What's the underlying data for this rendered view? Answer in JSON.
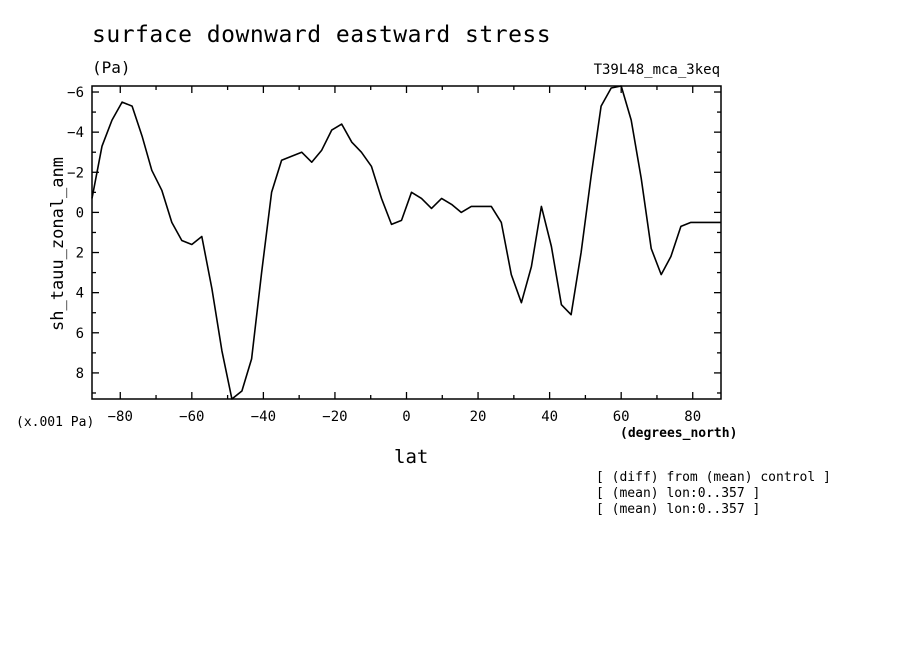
{
  "header": {
    "title": "surface downward eastward stress",
    "units": "(Pa)",
    "run_id": "T39L48_mca_3keq"
  },
  "axes": {
    "y_scale_note": "(x.001 Pa)",
    "x_units": "(degrees_north)"
  },
  "notes": [
    "[ (diff) from (mean) control ]",
    "[ (mean) lon:0..357 ]",
    "[ (mean) lon:0..357 ]"
  ],
  "chart_data": {
    "type": "line",
    "xlabel": "lat",
    "ylabel": "sh_tauu_zonal_anm",
    "xlim": [
      -87.9,
      87.9
    ],
    "ylim": [
      9.3,
      -6.3
    ],
    "y_inverted": true,
    "x_ticks": [
      -80,
      -60,
      -40,
      -20,
      0,
      20,
      40,
      60,
      80
    ],
    "y_ticks": [
      -6,
      -4,
      -2,
      0,
      2,
      4,
      6,
      8
    ],
    "x_tick_labels": [
      "−80",
      "−60",
      "−40",
      "−20",
      "0",
      "20",
      "40",
      "60",
      "80"
    ],
    "y_tick_labels": [
      "−6",
      "−4",
      "−2",
      "0",
      "2",
      "4",
      "6",
      "8"
    ],
    "grid": false,
    "series": [
      {
        "x": [
          -87.9,
          -85.1,
          -82.3,
          -79.5,
          -76.7,
          -73.9,
          -71.2,
          -68.4,
          -65.6,
          -62.8,
          -60.0,
          -57.2,
          -54.4,
          -51.6,
          -48.8,
          -46.0,
          -43.3,
          -40.5,
          -37.7,
          -34.9,
          -32.1,
          -29.3,
          -26.5,
          -23.7,
          -20.9,
          -18.1,
          -15.3,
          -12.6,
          -9.8,
          -7.0,
          -4.2,
          -1.4,
          1.4,
          4.2,
          7.0,
          9.8,
          12.6,
          15.3,
          18.1,
          20.9,
          23.7,
          26.5,
          29.3,
          32.1,
          34.9,
          37.7,
          40.5,
          43.3,
          46.0,
          48.8,
          51.6,
          54.4,
          57.2,
          60.0,
          62.8,
          65.6,
          68.4,
          71.2,
          73.9,
          76.7,
          79.5,
          82.3,
          85.1,
          87.9
        ],
        "values": [
          -0.7,
          -3.3,
          -4.6,
          -5.5,
          -5.3,
          -3.8,
          -2.1,
          -1.1,
          0.5,
          1.4,
          1.6,
          1.2,
          3.8,
          6.9,
          9.3,
          8.9,
          7.3,
          3.0,
          -1.0,
          -2.6,
          -2.8,
          -3.0,
          -2.5,
          -3.1,
          -4.1,
          -4.4,
          -3.5,
          -3.0,
          -2.3,
          -0.7,
          0.6,
          0.4,
          -1.0,
          -0.7,
          -0.2,
          -0.7,
          -0.4,
          0.0,
          -0.3,
          -0.3,
          -0.3,
          0.5,
          3.1,
          4.5,
          2.7,
          -0.3,
          1.7,
          4.6,
          5.1,
          2.0,
          -1.8,
          -5.3,
          -6.2,
          -6.3,
          -4.6,
          -1.7,
          1.8,
          3.1,
          2.2,
          0.7,
          0.5,
          0.5,
          0.5,
          0.5
        ]
      }
    ]
  }
}
